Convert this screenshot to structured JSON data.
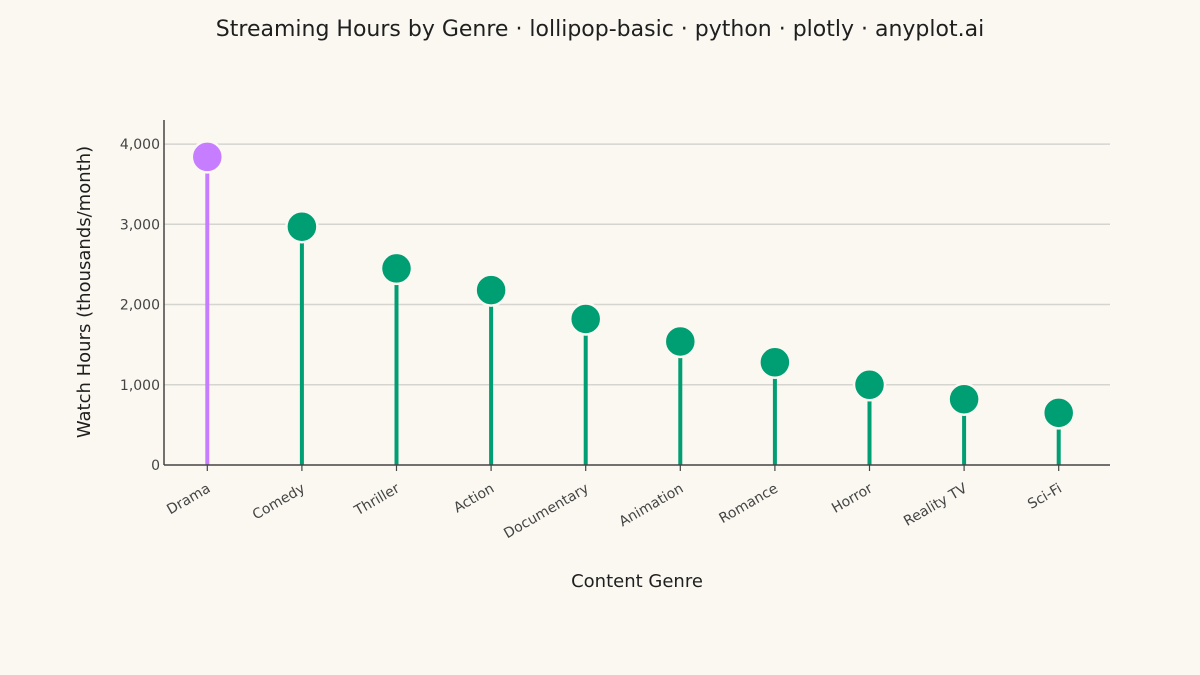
{
  "chart_data": {
    "type": "lollipop",
    "title": "Streaming Hours by Genre · lollipop-basic · python · plotly · anyplot.ai",
    "xlabel": "Content Genre",
    "ylabel": "Watch Hours (thousands/month)",
    "ylim": [
      0,
      4300
    ],
    "yticks": [
      0,
      1000,
      2000,
      3000,
      4000
    ],
    "ytick_labels": [
      "0",
      "1,000",
      "2,000",
      "3,000",
      "4,000"
    ],
    "categories": [
      "Drama",
      "Comedy",
      "Thriller",
      "Action",
      "Documentary",
      "Animation",
      "Romance",
      "Horror",
      "Reality TV",
      "Sci-Fi"
    ],
    "values": [
      3840,
      2970,
      2450,
      2180,
      1820,
      1540,
      1280,
      1000,
      820,
      650
    ],
    "highlight_index": 0,
    "colors": {
      "highlight": "#C77DFF",
      "default": "#009E73",
      "marker_outline": "#FAF8F1",
      "background": "#FAF8F1"
    },
    "grid": true,
    "legend": "none"
  }
}
